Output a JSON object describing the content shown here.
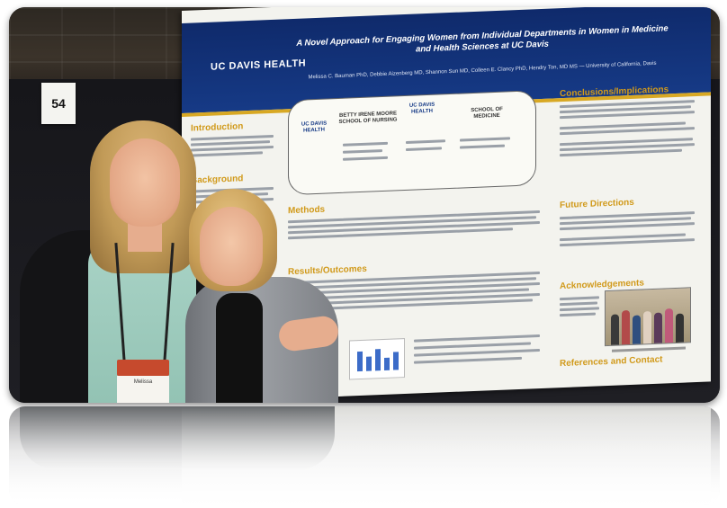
{
  "booth": {
    "number": "54"
  },
  "poster": {
    "logo": "UC DAVIS HEALTH",
    "title": "A Novel Approach for Engaging Women from Individual Departments in Women in Medicine and Health Sciences at UC Davis",
    "authors": "Melissa C. Bauman PhD, Debbie Aizenberg MD, Shannon Sun MD, Colleen E. Clancy PhD, Hendry Ton, MD MS — University of California, Davis",
    "sections": {
      "introduction": "Introduction",
      "background": "Background",
      "methods": "Methods",
      "results": "Results/Outcomes",
      "conclusions": "Conclusions/Implications",
      "future": "Future Directions",
      "acknowledgements": "Acknowledgements",
      "references": "References and Contact"
    },
    "org": {
      "left": "UC DAVIS HEALTH",
      "nursing": "BETTY IRENE MOORE SCHOOL OF NURSING",
      "center": "UC DAVIS HEALTH",
      "medicine": "SCHOOL OF MEDICINE"
    }
  },
  "badge": {
    "name": "Melissa"
  },
  "colors": {
    "poster_header": "#163a86",
    "section_heading": "#d19a1b",
    "gold_rule": "#d8a823"
  }
}
